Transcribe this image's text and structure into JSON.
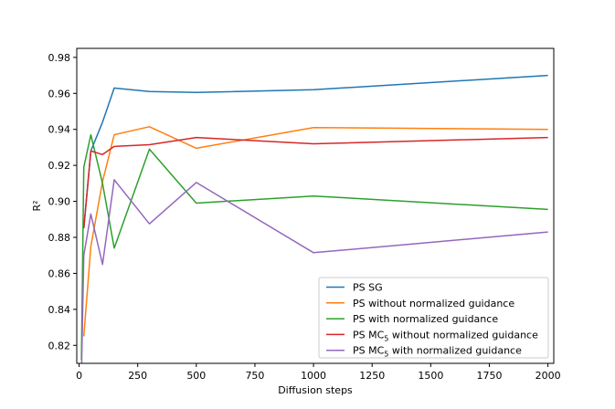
{
  "chart_data": {
    "type": "line",
    "title": "",
    "xlabel": "Diffusion steps",
    "ylabel": "R²",
    "xlim": [
      -10,
      2025
    ],
    "ylim": [
      0.81,
      0.985
    ],
    "grid": false,
    "legend_position": "bottom-right",
    "xticks": [
      0,
      250,
      500,
      750,
      1000,
      1250,
      1500,
      1750,
      2000
    ],
    "xtick_labels": [
      "0",
      "250",
      "500",
      "750",
      "1000",
      "1250",
      "1500",
      "1750",
      "2000"
    ],
    "yticks": [
      0.82,
      0.84,
      0.86,
      0.88,
      0.9,
      0.92,
      0.94,
      0.96,
      0.98
    ],
    "ytick_labels": [
      "0.82",
      "0.84",
      "0.86",
      "0.88",
      "0.90",
      "0.92",
      "0.94",
      "0.96",
      "0.98"
    ],
    "series": [
      {
        "name": "PS SG",
        "color": "#1f77b4",
        "x": [
          20,
          50,
          100,
          150,
          300,
          500,
          1000,
          2000
        ],
        "y": [
          0.885,
          0.928,
          0.944,
          0.963,
          0.961,
          0.9605,
          0.962,
          0.97
        ]
      },
      {
        "name": "PS without normalized guidance",
        "color": "#ff7f0e",
        "x": [
          20,
          50,
          100,
          150,
          300,
          500,
          1000,
          2000
        ],
        "y": [
          0.825,
          0.875,
          0.911,
          0.937,
          0.9415,
          0.9295,
          0.941,
          0.94
        ]
      },
      {
        "name": "PS with normalized guidance",
        "color": "#2ca02c",
        "x": [
          10,
          20,
          50,
          100,
          150,
          300,
          500,
          1000,
          2000
        ],
        "y": [
          0.812,
          0.919,
          0.937,
          0.91,
          0.874,
          0.929,
          0.899,
          0.903,
          0.8955
        ]
      },
      {
        "name_main": "PS MC",
        "name_sub": "5",
        "name_rest": " without normalized guidance",
        "color": "#d62728",
        "x": [
          20,
          50,
          100,
          150,
          300,
          500,
          1000,
          2000
        ],
        "y": [
          0.885,
          0.928,
          0.926,
          0.9305,
          0.9315,
          0.9355,
          0.932,
          0.9355
        ]
      },
      {
        "name_main": "PS MC",
        "name_sub": "5",
        "name_rest": " with normalized guidance",
        "color": "#9467bd",
        "x": [
          10,
          20,
          50,
          100,
          150,
          300,
          500,
          1000,
          2000
        ],
        "y": [
          0.803,
          0.87,
          0.893,
          0.865,
          0.912,
          0.8875,
          0.9105,
          0.8715,
          0.883
        ]
      }
    ]
  }
}
